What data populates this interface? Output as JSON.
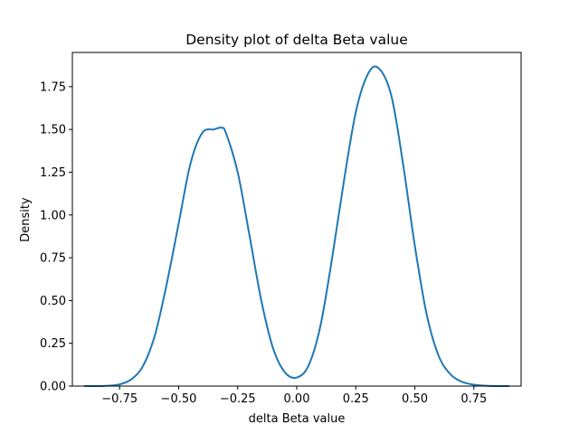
{
  "chart_data": {
    "type": "line",
    "title": "Density plot of delta Beta value",
    "xlabel": "delta Beta value",
    "ylabel": "Density",
    "xlim": [
      -0.95,
      0.95
    ],
    "ylim": [
      0,
      1.95
    ],
    "grid": false,
    "legend": "none",
    "x_ticks": [
      {
        "value": -0.75,
        "label": "−0.75"
      },
      {
        "value": -0.5,
        "label": "−0.50"
      },
      {
        "value": -0.25,
        "label": "−0.25"
      },
      {
        "value": 0.0,
        "label": "0.00"
      },
      {
        "value": 0.25,
        "label": "0.25"
      },
      {
        "value": 0.5,
        "label": "0.50"
      },
      {
        "value": 0.75,
        "label": "0.75"
      }
    ],
    "y_ticks": [
      {
        "value": 0.0,
        "label": "0.00"
      },
      {
        "value": 0.25,
        "label": "0.25"
      },
      {
        "value": 0.5,
        "label": "0.50"
      },
      {
        "value": 0.75,
        "label": "0.75"
      },
      {
        "value": 1.0,
        "label": "1.00"
      },
      {
        "value": 1.25,
        "label": "1.25"
      },
      {
        "value": 1.5,
        "label": "1.50"
      },
      {
        "value": 1.75,
        "label": "1.75"
      }
    ],
    "series": [
      {
        "color": "#1f77b4",
        "x": [
          -0.9,
          -0.85,
          -0.8,
          -0.75,
          -0.7,
          -0.65,
          -0.6,
          -0.55,
          -0.5,
          -0.45,
          -0.4,
          -0.35,
          -0.32,
          -0.3,
          -0.25,
          -0.2,
          -0.15,
          -0.1,
          -0.05,
          0.0,
          0.05,
          0.1,
          0.15,
          0.2,
          0.25,
          0.3,
          0.345,
          0.4,
          0.45,
          0.5,
          0.55,
          0.6,
          0.65,
          0.7,
          0.75,
          0.8,
          0.85,
          0.9
        ],
        "y": [
          0.0,
          0.0,
          0.002,
          0.01,
          0.04,
          0.12,
          0.3,
          0.6,
          0.95,
          1.3,
          1.48,
          1.5,
          1.51,
          1.48,
          1.25,
          0.88,
          0.5,
          0.22,
          0.08,
          0.05,
          0.12,
          0.35,
          0.75,
          1.2,
          1.6,
          1.82,
          1.86,
          1.7,
          1.3,
          0.82,
          0.42,
          0.18,
          0.07,
          0.025,
          0.008,
          0.002,
          0.0,
          0.0
        ]
      }
    ]
  }
}
